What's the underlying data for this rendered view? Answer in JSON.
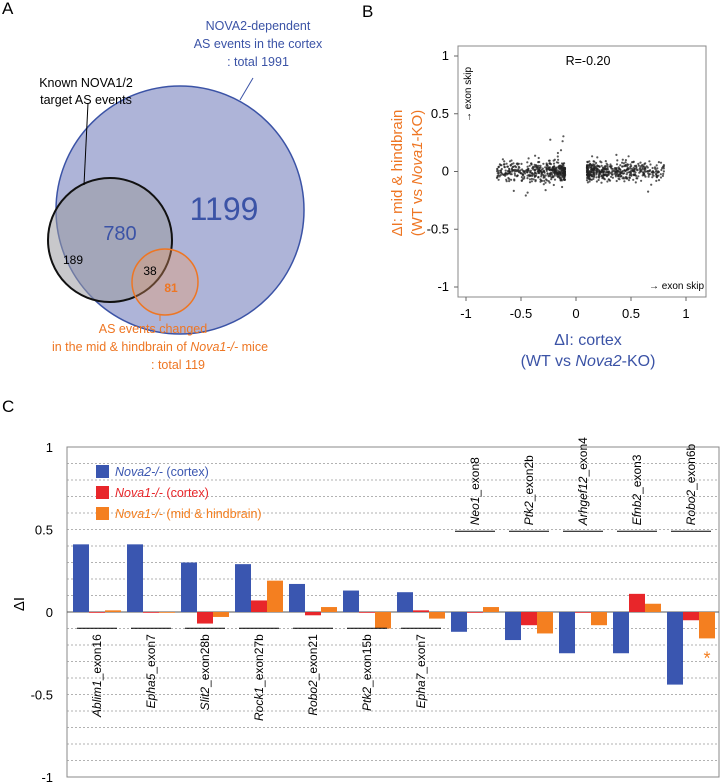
{
  "panel_labels": {
    "a": "A",
    "b": "B",
    "c": "C"
  },
  "venn": {
    "nova2": {
      "lines": [
        "NOVA2-dependent",
        "AS events in the cortex",
        ": total 1991"
      ],
      "count": "1199"
    },
    "known": {
      "lines": [
        "Known NOVA1/2",
        "target AS events"
      ],
      "count_only": "189"
    },
    "overlap_known_nova2": "780",
    "overlap_all": "38",
    "mid_hind": {
      "line1": "AS events changed",
      "line2_pre": "in the mid & hindbrain of ",
      "line2_italic": "Nova1-/-",
      "line2_post": " mice",
      "line3": ": total 119",
      "count": "81"
    },
    "colors": {
      "nova2_fill": "#aeb4d8",
      "nova2_stroke": "#3b53a6",
      "known_stroke": "#111111",
      "orange": "#ee7623"
    }
  },
  "scatter": {
    "r_label": "R=-0.20",
    "y_label_line1": "ΔI: mid & hindbrain",
    "y_label_line2_pre": "(WT vs ",
    "y_label_line2_italic": "Nova1",
    "y_label_line2_post": "-KO)",
    "x_label_line1": "ΔI: cortex",
    "x_label_line2_pre": "(WT vs ",
    "x_label_line2_italic": "Nova2",
    "x_label_line2_post": "-KO)",
    "y_arrow_label": "→ exon skip",
    "x_arrow_label": "→ exon skip",
    "xticks": [
      "-1",
      "-0.5",
      "0",
      "0.5",
      "1"
    ],
    "yticks": [
      "1",
      "0.5",
      "0",
      "-0.5",
      "-1"
    ]
  },
  "chart_data": {
    "type": "bar",
    "ylabel": "ΔI",
    "ylim": [
      -1,
      1
    ],
    "yticks": [
      "1",
      "0.5",
      "0",
      "-0.5",
      "-1"
    ],
    "categories": [
      {
        "gene": "Ablim1",
        "exon": "_exon16"
      },
      {
        "gene": "Epha5",
        "exon": "_exon7"
      },
      {
        "gene": "Slit2",
        "exon": "_exon28b"
      },
      {
        "gene": "Rock1",
        "exon": "_exon27b"
      },
      {
        "gene": "Robo2",
        "exon": "_exon21"
      },
      {
        "gene": "Ptk2",
        "exon": "_exon15b"
      },
      {
        "gene": "Epha7",
        "exon": "_exon7"
      },
      {
        "gene": "Neo1",
        "exon": "_exon8"
      },
      {
        "gene": "Ptk2",
        "exon": "_exon2b"
      },
      {
        "gene": "Arhgef12",
        "exon": "_exon4"
      },
      {
        "gene": "Efnb2",
        "exon": "_exon3"
      },
      {
        "gene": "Robo2",
        "exon": "_exon6b"
      }
    ],
    "series": [
      {
        "name_italic": "Nova2-/-",
        "name_rest": " (cortex)",
        "color": "#3a56b0",
        "values": [
          0.41,
          0.41,
          0.3,
          0.29,
          0.17,
          0.13,
          0.12,
          -0.12,
          -0.17,
          -0.25,
          -0.25,
          -0.44
        ]
      },
      {
        "name_italic": "Nova1-/-",
        "name_rest": " (cortex)",
        "color": "#e8262a",
        "values": [
          0.0,
          0.0,
          -0.07,
          0.07,
          -0.02,
          0.0,
          0.01,
          0.0,
          -0.08,
          0.0,
          0.11,
          -0.05
        ]
      },
      {
        "name_italic": "Nova1-/-",
        "name_rest": " (mid & hindbrain)",
        "color": "#f47f20",
        "values": [
          0.01,
          0.0,
          -0.03,
          0.19,
          0.03,
          -0.1,
          -0.04,
          0.03,
          -0.13,
          -0.08,
          0.05,
          -0.16
        ]
      }
    ],
    "star": "*",
    "star_color": "#f47f20"
  }
}
